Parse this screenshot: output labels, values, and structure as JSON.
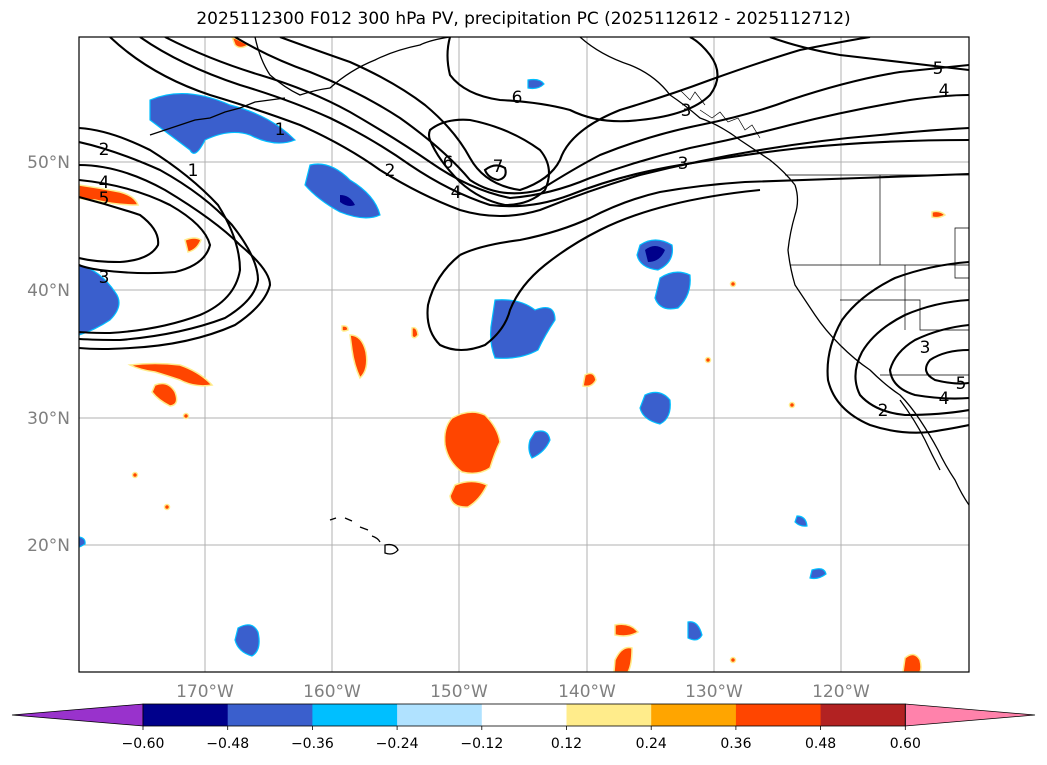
{
  "title": "2025112300 F012 300 hPa PV, precipitation PC (2025112612 - 2025112712)",
  "latitude_labels": [
    "50°N",
    "40°N",
    "30°N",
    "20°N"
  ],
  "longitude_labels": [
    "170°W",
    "160°W",
    "150°W",
    "140°W",
    "130°W",
    "120°W"
  ],
  "colorbar": {
    "ticks": [
      "−0.60",
      "−0.48",
      "−0.36",
      "−0.24",
      "−0.12",
      "0.12",
      "0.24",
      "0.36",
      "0.48",
      "0.60"
    ],
    "colors": [
      "#9932CC",
      "#00008B",
      "#3A5FCD",
      "#00BFFF",
      "#B0E2FF",
      "#FFFFFF",
      "#FFEC8B",
      "#FFA500",
      "#FF4500",
      "#B22222",
      "#FF82AB"
    ]
  },
  "pv_contour_labels": [
    "1",
    "1",
    "2",
    "2",
    "2",
    "3",
    "3",
    "3",
    "3",
    "4",
    "4",
    "4",
    "4",
    "5",
    "5",
    "5",
    "6",
    "6",
    "7"
  ],
  "colors": {
    "frame": "#000000",
    "grid": "#b0b0b0",
    "contour": "#000000",
    "coast": "#000000"
  }
}
